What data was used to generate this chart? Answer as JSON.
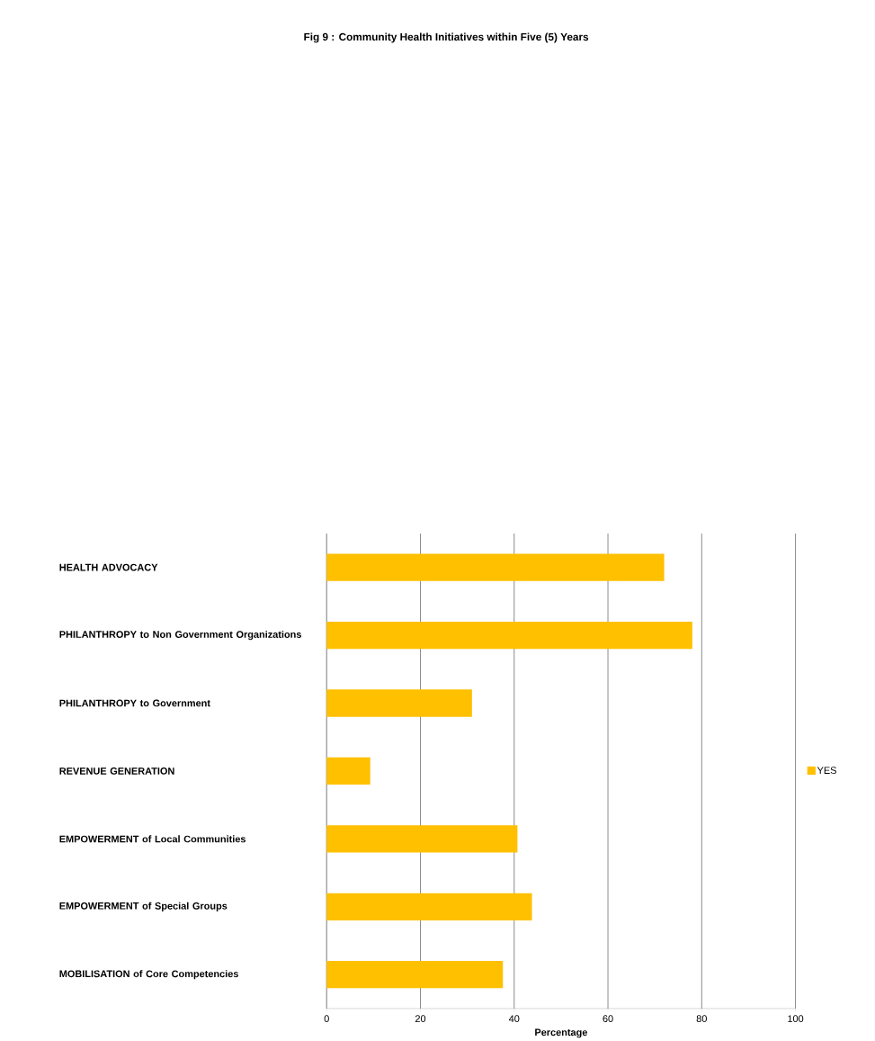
{
  "chart_data": {
    "type": "bar",
    "orientation": "horizontal",
    "title": "Fig 9 : Community Health Initiatives within Five (5)  Years",
    "xlabel": "Percentage",
    "categories": [
      "HEALTH ADVOCACY",
      "PHILANTHROPY to Non Government Organizations",
      "PHILANTHROPY to Government",
      "REVENUE GENERATION",
      "EMPOWERMENT of Local Communities",
      "EMPOWERMENT of Special Groups",
      "MOBILISATION of Core Competencies"
    ],
    "series": [
      {
        "name": "YES",
        "color": "#ffc000",
        "values": [
          72,
          78,
          31,
          9.3,
          40.7,
          43.8,
          37.6
        ]
      }
    ],
    "xlim": [
      0,
      100
    ],
    "xticks": [
      0,
      20,
      40,
      60,
      80,
      100
    ],
    "grid": "x",
    "legend": "right"
  }
}
